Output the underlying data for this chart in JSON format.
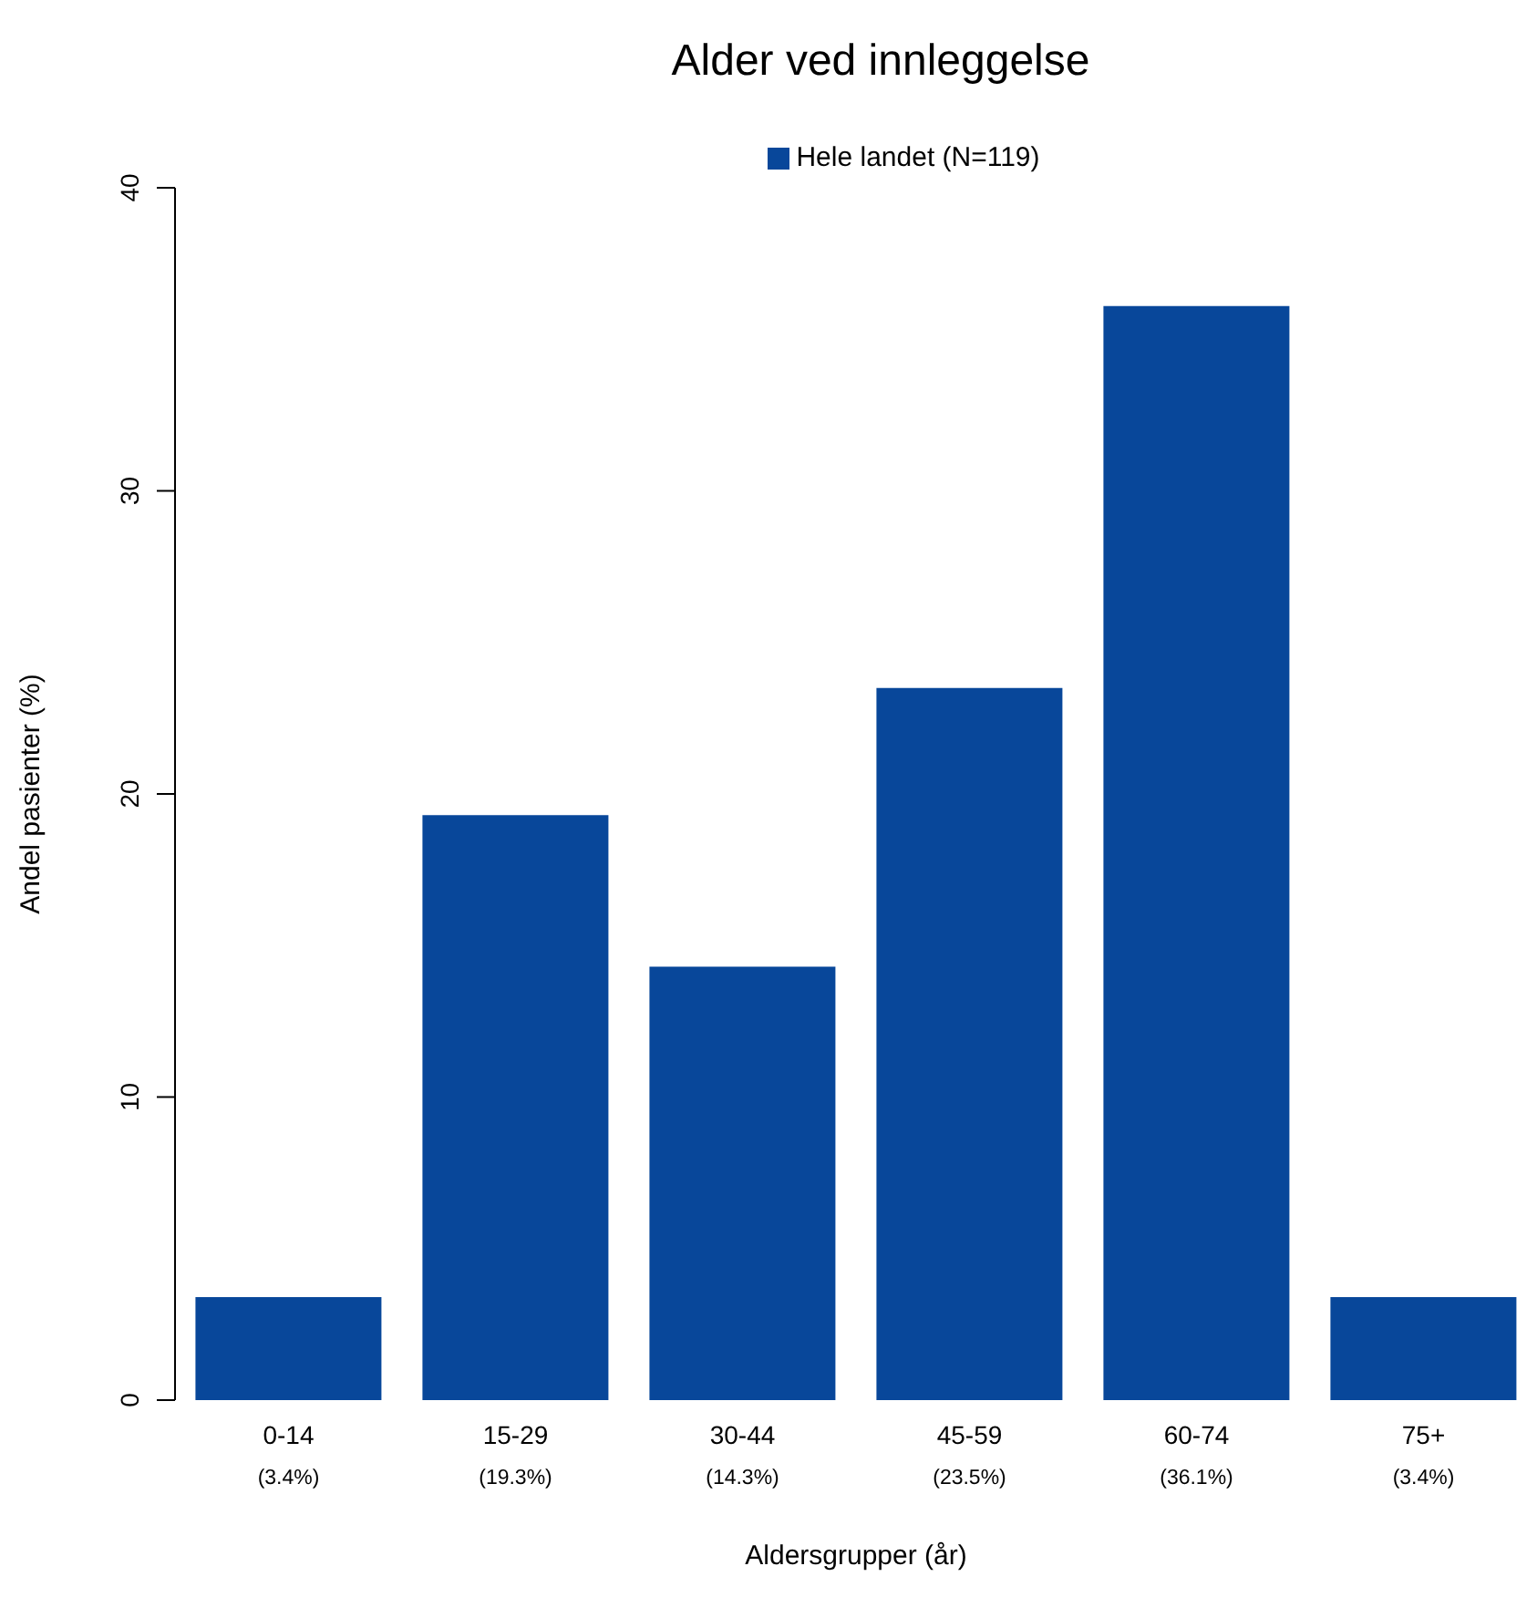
{
  "chart_data": {
    "type": "bar",
    "title": "Alder ved innleggelse",
    "xlabel": "Aldersgrupper (år)",
    "ylabel": "Andel pasienter (%)",
    "categories": [
      "0-14",
      "15-29",
      "30-44",
      "45-59",
      "60-74",
      "75+"
    ],
    "series": [
      {
        "name": "Hele landet (N=119)",
        "color": "#08479a",
        "values": [
          3.4,
          19.3,
          14.3,
          23.5,
          36.1,
          3.4
        ],
        "value_labels": [
          "(3.4%)",
          "(19.3%)",
          "(14.3%)",
          "(23.5%)",
          "(36.1%)",
          "(3.4%)"
        ]
      }
    ],
    "ylim": [
      0,
      40
    ],
    "yticks": [
      0,
      10,
      20,
      30,
      40
    ],
    "grid": false,
    "legend": "top"
  }
}
